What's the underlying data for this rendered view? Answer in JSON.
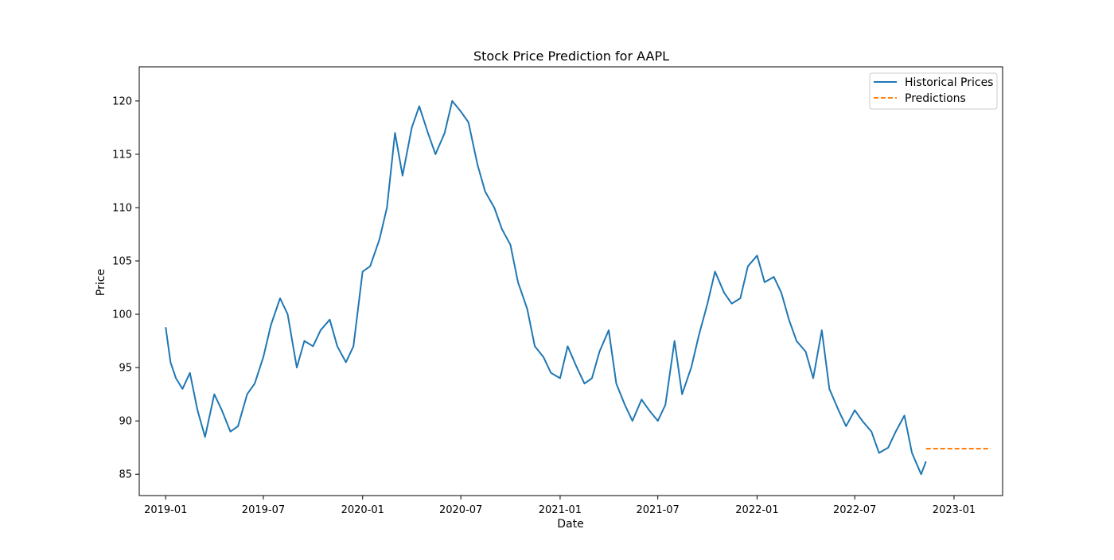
{
  "chart_data": {
    "type": "line",
    "title": "Stock Price Prediction for AAPL",
    "xlabel": "Date",
    "ylabel": "Price",
    "x_range": [
      "2018-11-13",
      "2023-04-01"
    ],
    "ylim": [
      83,
      123.2
    ],
    "x_ticks": [
      "2019-01",
      "2019-07",
      "2020-01",
      "2020-07",
      "2021-01",
      "2021-07",
      "2022-01",
      "2022-07",
      "2023-01"
    ],
    "y_ticks": [
      85,
      90,
      95,
      100,
      105,
      110,
      115,
      120
    ],
    "grid": false,
    "legend_position": "top-right",
    "series": [
      {
        "name": "Historical Prices",
        "color": "#1f77b4",
        "style": "solid",
        "x": [
          "2019-01-01",
          "2019-01-10",
          "2019-01-20",
          "2019-02-01",
          "2019-02-15",
          "2019-03-01",
          "2019-03-15",
          "2019-04-01",
          "2019-04-15",
          "2019-05-01",
          "2019-05-15",
          "2019-06-01",
          "2019-06-15",
          "2019-07-01",
          "2019-07-15",
          "2019-08-01",
          "2019-08-15",
          "2019-09-01",
          "2019-09-15",
          "2019-10-01",
          "2019-10-15",
          "2019-11-01",
          "2019-11-15",
          "2019-12-01",
          "2019-12-15",
          "2020-01-01",
          "2020-01-15",
          "2020-02-01",
          "2020-02-15",
          "2020-03-01",
          "2020-03-15",
          "2020-04-01",
          "2020-04-15",
          "2020-05-01",
          "2020-05-15",
          "2020-06-01",
          "2020-06-15",
          "2020-07-01",
          "2020-07-15",
          "2020-08-01",
          "2020-08-15",
          "2020-09-01",
          "2020-09-15",
          "2020-10-01",
          "2020-10-15",
          "2020-11-01",
          "2020-11-15",
          "2020-12-01",
          "2020-12-15",
          "2021-01-01",
          "2021-01-15",
          "2021-02-01",
          "2021-02-15",
          "2021-03-01",
          "2021-03-15",
          "2021-04-01",
          "2021-04-15",
          "2021-05-01",
          "2021-05-15",
          "2021-06-01",
          "2021-06-15",
          "2021-07-01",
          "2021-07-15",
          "2021-08-01",
          "2021-08-15",
          "2021-09-01",
          "2021-09-15",
          "2021-10-01",
          "2021-10-15",
          "2021-11-01",
          "2021-11-15",
          "2021-12-01",
          "2021-12-15",
          "2022-01-01",
          "2022-01-15",
          "2022-02-01",
          "2022-02-15",
          "2022-03-01",
          "2022-03-15",
          "2022-04-01",
          "2022-04-15",
          "2022-05-01",
          "2022-05-15",
          "2022-06-01",
          "2022-06-15",
          "2022-07-01",
          "2022-07-15",
          "2022-08-01",
          "2022-08-15",
          "2022-09-01",
          "2022-09-15",
          "2022-10-01",
          "2022-10-15",
          "2022-11-01",
          "2022-11-10"
        ],
        "values": [
          98.8,
          95.5,
          94.0,
          93.0,
          94.5,
          91.0,
          88.5,
          92.5,
          91.0,
          89.0,
          89.5,
          92.5,
          93.5,
          96.0,
          99.0,
          101.5,
          100.0,
          95.0,
          97.5,
          97.0,
          98.5,
          99.5,
          97.0,
          95.5,
          97.0,
          104.0,
          104.5,
          107.0,
          110.0,
          117.0,
          113.0,
          117.5,
          119.5,
          117.0,
          115.0,
          117.0,
          120.0,
          119.0,
          118.0,
          114.0,
          111.5,
          110.0,
          108.0,
          106.5,
          103.0,
          100.5,
          97.0,
          96.0,
          94.5,
          94.0,
          97.0,
          95.0,
          93.5,
          94.0,
          96.5,
          98.5,
          93.5,
          91.5,
          90.0,
          92.0,
          91.0,
          90.0,
          91.5,
          97.5,
          92.5,
          95.0,
          98.0,
          101.0,
          104.0,
          102.0,
          101.0,
          101.5,
          104.5,
          105.5,
          103.0,
          103.5,
          102.0,
          99.5,
          97.5,
          96.5,
          94.0,
          98.5,
          93.0,
          91.0,
          89.5,
          91.0,
          90.0,
          89.0,
          87.0,
          87.5,
          89.0,
          90.5,
          87.0,
          85.0,
          86.2
        ]
      },
      {
        "name": "Predictions",
        "color": "#ff7f0e",
        "style": "dashed",
        "x": [
          "2022-11-10",
          "2023-03-10"
        ],
        "values": [
          87.4,
          87.4
        ]
      }
    ]
  }
}
